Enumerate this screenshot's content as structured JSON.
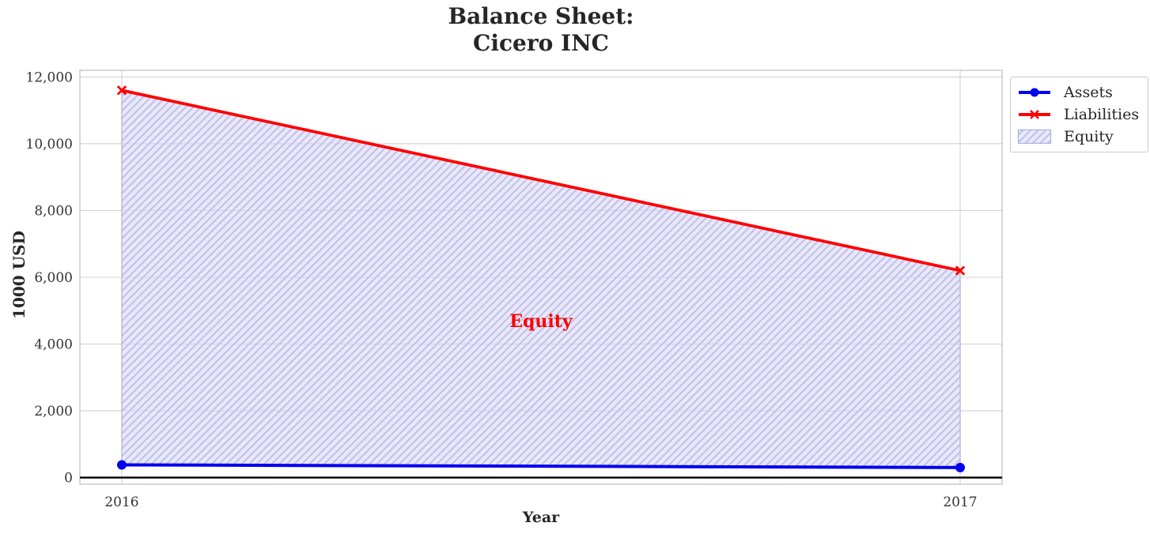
{
  "title": {
    "lines": [
      "Balance Sheet:",
      "Cicero INC"
    ]
  },
  "chart_data": {
    "type": "area",
    "title": "Balance Sheet:\nCicero INC",
    "x": [
      2016,
      2017
    ],
    "series": [
      {
        "name": "Assets",
        "values": [
          380,
          300
        ],
        "color": "#0000f0",
        "marker": "circle"
      },
      {
        "name": "Liabilities",
        "values": [
          11600,
          6200
        ],
        "color": "#ff0000",
        "marker": "x"
      }
    ],
    "area": {
      "name": "Equity",
      "between": [
        "Assets",
        "Liabilities"
      ],
      "fill": "#d4d4f4",
      "hatch_color": "#bebeec",
      "hatch": "/"
    },
    "annotation": {
      "text": "Equity",
      "x": 2016.5,
      "y": 4700,
      "color": "#ff0000"
    },
    "xlabel": "Year",
    "ylabel": "1000 USD",
    "xlim": [
      2015.95,
      2017.05
    ],
    "ylim": [
      -200,
      12200
    ],
    "xticks": [
      2016,
      2017
    ],
    "xtick_labels": [
      "2016",
      "2017"
    ],
    "yticks": [
      0,
      2000,
      4000,
      6000,
      8000,
      10000,
      12000
    ],
    "ytick_labels": [
      "0",
      "2,000",
      "4,000",
      "6,000",
      "8,000",
      "10,000",
      "12,000"
    ],
    "grid": true,
    "zero_line": true,
    "legend": {
      "position": "upper right",
      "entries": [
        "Assets",
        "Liabilities",
        "Equity"
      ]
    }
  },
  "colors": {
    "assets": "#0000f0",
    "liabilities": "#ff0000",
    "equity_fill": "#d4d4f4",
    "equity_hatch": "#bebeec",
    "equity_edge": "#b0b0e0",
    "grid": "#d2d2d2",
    "spine": "#c4c4c4",
    "tick_text": "#333333",
    "zero_line": "#000000"
  }
}
